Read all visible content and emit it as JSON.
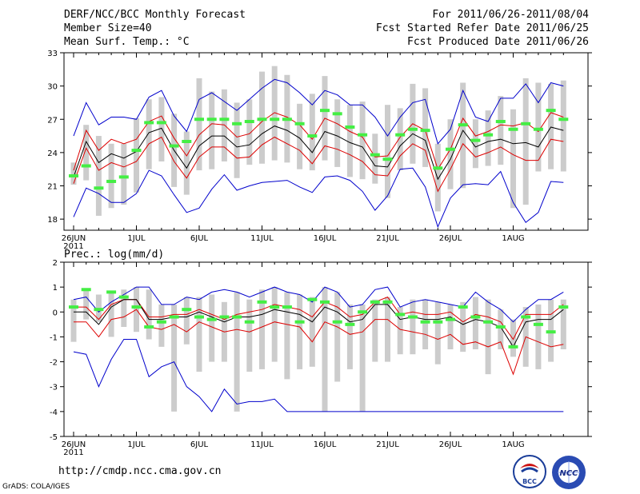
{
  "header": {
    "title": "DERF/NCC/BCC Monthly Forecast",
    "member_size": "Member Size=40",
    "variable": "Mean Surf. Temp.: °C",
    "forecast_period": "For 2011/06/26-2011/08/04",
    "refer_date": "Fcst Started Refer Date 2011/06/25",
    "produced_date": "Fcst Produced Date 2011/06/26"
  },
  "footer": {
    "url": "http://cmdp.ncc.cma.gov.cn",
    "credit": "GrADS: COLA/IGES",
    "logo_bcc": "BCC",
    "logo_ncc": "NCC"
  },
  "chart_data": [
    {
      "type": "ensemble-timeseries",
      "title": "Mean Surf. Temp.: °C",
      "ylim": [
        17,
        33
      ],
      "yticks": [
        18,
        21,
        24,
        27,
        30,
        33
      ],
      "xticks": [
        {
          "day": 0,
          "label": "26JUN",
          "sublabel": "2011"
        },
        {
          "day": 5,
          "label": "1JUL"
        },
        {
          "day": 10,
          "label": "6JUL"
        },
        {
          "day": 15,
          "label": "11JUL"
        },
        {
          "day": 20,
          "label": "16JUL"
        },
        {
          "day": 25,
          "label": "21JUL"
        },
        {
          "day": 30,
          "label": "26JUL"
        },
        {
          "day": 35,
          "label": "1AUG"
        }
      ],
      "days": 40,
      "series": [
        {
          "name": "max",
          "color": "#0000cc",
          "values": [
            25.5,
            28.5,
            26.5,
            27.2,
            27.2,
            27,
            29,
            29.6,
            27.3,
            25.9,
            28.8,
            29.4,
            28.6,
            27.8,
            28.8,
            29.8,
            30.6,
            30.3,
            29.4,
            28.3,
            29.6,
            29.2,
            28.3,
            28.3,
            27.2,
            25.5,
            27.2,
            28.5,
            28.8,
            24.8,
            26.1,
            29.6,
            27.2,
            26.8,
            28.9,
            28.9,
            30.2,
            28.5,
            30.3,
            30
          ]
        },
        {
          "name": "upper",
          "color": "#dd0000",
          "values": [
            22.4,
            26,
            24.2,
            25.2,
            24.8,
            25.2,
            26.8,
            27.3,
            25.3,
            23.7,
            25.6,
            26.6,
            26.5,
            25.4,
            25.7,
            26.8,
            27.6,
            27.2,
            26.5,
            25.2,
            27.1,
            26.6,
            25.9,
            25.4,
            23.6,
            23.7,
            25.4,
            26.6,
            26,
            22.5,
            24.3,
            27.1,
            25.5,
            25.9,
            26.5,
            26.4,
            26.7,
            25.9,
            27.6,
            27.2
          ]
        },
        {
          "name": "mean",
          "color": "#000000",
          "values": [
            21.8,
            25,
            23.1,
            23.9,
            23.5,
            24.1,
            25.8,
            26.2,
            24.2,
            22.6,
            24.6,
            25.5,
            25.5,
            24.5,
            24.7,
            25.7,
            26.4,
            26,
            25.3,
            24,
            25.9,
            25.5,
            24.9,
            24.5,
            22.8,
            22.7,
            24.6,
            25.7,
            25.1,
            21.6,
            23.4,
            26,
            24.5,
            25,
            25.2,
            24.8,
            24.9,
            24.5,
            26.3,
            26
          ]
        },
        {
          "name": "lower",
          "color": "#dd0000",
          "values": [
            21.2,
            24.4,
            22.4,
            23.1,
            22.7,
            23.2,
            24.8,
            25.4,
            23.2,
            21.7,
            23.6,
            24.5,
            24.5,
            23.5,
            23.6,
            24.7,
            25.4,
            24.8,
            24.2,
            23,
            24.6,
            24.3,
            23.8,
            23.2,
            22,
            21.9,
            23.7,
            24.8,
            24.2,
            20.5,
            22.5,
            24.8,
            23.6,
            24,
            24.5,
            23.8,
            23.3,
            23.3,
            25.2,
            25
          ]
        },
        {
          "name": "min",
          "color": "#0000cc",
          "values": [
            18.2,
            20.8,
            20.3,
            19.5,
            19.5,
            20.3,
            22.4,
            21.9,
            20.2,
            18.6,
            19,
            20.7,
            22,
            20.6,
            21,
            21.3,
            21.4,
            21.5,
            20.9,
            20.4,
            21.8,
            21.9,
            21.5,
            20.5,
            18.8,
            20.1,
            22.5,
            22.6,
            20.9,
            17.3,
            19.9,
            21.1,
            21.2,
            21.1,
            22.3,
            19.5,
            17.7,
            18.6,
            21.4,
            21.3
          ]
        },
        {
          "name": "observed",
          "color": "#44ee44",
          "values": [
            21.9,
            22.8,
            20.8,
            21.4,
            21.8,
            24.2,
            26.7,
            26.7,
            24.6,
            25,
            27,
            27,
            27,
            26.6,
            26.8,
            27,
            27,
            27,
            26.6,
            25.5,
            27.8,
            27.5,
            26.3,
            25.6,
            23.8,
            23.4,
            25.6,
            26.1,
            26,
            22.6,
            24.3,
            26.5,
            25.1,
            25.6,
            26.8,
            26.1,
            26.6,
            26.1,
            27.8,
            27
          ]
        }
      ],
      "bars_low": [
        21.1,
        21.5,
        18.3,
        19,
        19.3,
        20.4,
        22.5,
        23.2,
        20.9,
        20.2,
        22.4,
        22.5,
        23.2,
        21.7,
        22.9,
        23,
        23.3,
        23.1,
        22.5,
        22.4,
        23.3,
        22.7,
        21.8,
        21.6,
        21.2,
        19.9,
        22.4,
        23,
        22.7,
        18.7,
        20.7,
        20.8,
        22.6,
        22.8,
        22.9,
        19,
        19.3,
        22.3,
        22.5,
        22.3
      ],
      "bars_high": [
        23.1,
        26.5,
        25.5,
        24.8,
        24.8,
        27.1,
        28.8,
        29,
        27.5,
        25.9,
        30.7,
        29.5,
        29.7,
        28.5,
        28.8,
        31.3,
        31.8,
        31,
        28.4,
        29.3,
        30.9,
        28.8,
        28.3,
        28.6,
        25.7,
        28.3,
        28,
        30.2,
        29.8,
        24.8,
        27,
        30.3,
        27,
        27.8,
        29.1,
        27.9,
        30.7,
        30.3,
        30.2,
        30.5
      ]
    },
    {
      "type": "ensemble-timeseries",
      "title": "Prec.: log(mm/d)",
      "ylim": [
        -5,
        2
      ],
      "yticks": [
        -5,
        -4,
        -3,
        -2,
        -1,
        0,
        1,
        2
      ],
      "xticks": [
        {
          "day": 0,
          "label": "26JUN",
          "sublabel": "2011"
        },
        {
          "day": 5,
          "label": "1JUL"
        },
        {
          "day": 10,
          "label": "6JUL"
        },
        {
          "day": 15,
          "label": "11JUL"
        },
        {
          "day": 20,
          "label": "16JUL"
        },
        {
          "day": 25,
          "label": "21JUL"
        },
        {
          "day": 30,
          "label": "26JUL"
        },
        {
          "day": 35,
          "label": "1AUG"
        }
      ],
      "days": 40,
      "series": [
        {
          "name": "max",
          "color": "#0000cc",
          "values": [
            0.5,
            0.6,
            0,
            0.4,
            0.7,
            1.0,
            1.0,
            0.3,
            0.3,
            0.6,
            0.5,
            0.8,
            0.9,
            0.8,
            0.6,
            0.8,
            1.0,
            0.8,
            0.7,
            0.4,
            1.0,
            0.8,
            0.2,
            0.3,
            0.9,
            1.0,
            0.2,
            0.4,
            0.5,
            0.4,
            0.3,
            0.2,
            0.8,
            0.4,
            0.1,
            -0.4,
            0.1,
            0.5,
            0.5,
            0.8
          ]
        },
        {
          "name": "upper",
          "color": "#dd0000",
          "values": [
            0.2,
            0.2,
            -0.3,
            0.3,
            0.5,
            0.5,
            -0.2,
            -0.2,
            -0.1,
            -0.1,
            0.1,
            -0.1,
            -0.3,
            -0.1,
            0,
            0.1,
            0.3,
            0.2,
            0.1,
            -0.2,
            0.4,
            0.2,
            -0.2,
            -0.1,
            0.4,
            0.6,
            -0.1,
            0,
            -0.1,
            -0.1,
            0,
            -0.4,
            -0.1,
            -0.2,
            -0.4,
            -1.1,
            -0.1,
            -0.1,
            -0.1,
            0.3
          ]
        },
        {
          "name": "mean",
          "color": "#000000",
          "values": [
            0,
            0,
            -0.5,
            0.2,
            0.5,
            0.5,
            -0.3,
            -0.3,
            -0.2,
            -0.2,
            0,
            -0.2,
            -0.4,
            -0.2,
            -0.2,
            -0.1,
            0.1,
            0,
            -0.1,
            -0.4,
            0.2,
            0,
            -0.4,
            -0.3,
            0.3,
            0.3,
            -0.3,
            -0.2,
            -0.3,
            -0.3,
            -0.2,
            -0.5,
            -0.3,
            -0.4,
            -0.6,
            -1.4,
            -0.4,
            -0.3,
            -0.3,
            0.1
          ]
        },
        {
          "name": "lower",
          "color": "#dd0000",
          "values": [
            -0.4,
            -0.4,
            -1.0,
            -0.3,
            -0.2,
            0.1,
            -0.6,
            -0.7,
            -0.5,
            -0.8,
            -0.4,
            -0.6,
            -0.8,
            -0.7,
            -0.8,
            -0.6,
            -0.4,
            -0.5,
            -0.6,
            -1.2,
            -0.4,
            -0.6,
            -0.9,
            -0.8,
            -0.3,
            -0.3,
            -0.7,
            -0.8,
            -0.9,
            -1.1,
            -0.9,
            -1.3,
            -1.2,
            -1.4,
            -1.2,
            -2.5,
            -1.0,
            -1.2,
            -1.4,
            -1.3
          ]
        },
        {
          "name": "min",
          "color": "#0000cc",
          "values": [
            -1.6,
            -1.7,
            -3.0,
            -1.9,
            -1.1,
            -1.1,
            -2.6,
            -2.2,
            -2.0,
            -3.0,
            -3.4,
            -4.0,
            -3.1,
            -3.7,
            -3.6,
            -3.6,
            -3.5,
            -4.0,
            -4.0,
            -4.0,
            -4.0,
            -4.0,
            -4.0,
            -4.0,
            -4.0,
            -4.0,
            -4.0,
            -4.0,
            -4.0,
            -4.0,
            -4.0,
            -4.0,
            -4.0,
            -4.0,
            -4.0,
            -4.0,
            -4.0,
            -4.0,
            -4.0,
            -4.0
          ]
        },
        {
          "name": "observed",
          "color": "#44ee44",
          "values": [
            0.2,
            0.9,
            0.1,
            0.8,
            0.6,
            0.2,
            -0.6,
            -0.4,
            -0.2,
            0.1,
            -0.2,
            -0.3,
            -0.2,
            -0.2,
            -0.4,
            0.4,
            0.2,
            0.2,
            -0.4,
            0.5,
            0.4,
            -0.4,
            -0.5,
            0,
            0.4,
            0.4,
            -0.1,
            -0.2,
            -0.4,
            -0.4,
            -0.3,
            0.2,
            -0.2,
            -0.4,
            -0.6,
            -1.4,
            -0.2,
            -0.5,
            -0.8,
            0.2
          ]
        }
      ],
      "bars_low": [
        -1.2,
        -0.3,
        -0.4,
        -1.0,
        -0.6,
        -0.8,
        -1.1,
        -1.4,
        -4.0,
        -1.3,
        -2.4,
        -2.0,
        -2.0,
        -4.0,
        -2.4,
        -2.3,
        -2.0,
        -2.7,
        -2.3,
        -2.2,
        -4.0,
        -2.8,
        -2.3,
        -4.0,
        -2.0,
        -2.0,
        -1.7,
        -1.7,
        -1.5,
        -2.1,
        -1.5,
        -1.6,
        -1.5,
        -2.5,
        -1.5,
        -1.8,
        -2.2,
        -2.3,
        -2.0,
        -1.5
      ],
      "bars_high": [
        0.5,
        0.9,
        0.7,
        0.8,
        0.9,
        1.0,
        0.9,
        0.3,
        0.3,
        0.6,
        0.6,
        0.7,
        0.4,
        0.8,
        0.5,
        0.9,
        1.0,
        0.8,
        0.7,
        0.6,
        1.0,
        0.8,
        0.3,
        0.3,
        0.5,
        0.6,
        0.2,
        0.5,
        0.5,
        0.4,
        0.3,
        0.4,
        0.6,
        0.5,
        0.1,
        -0.3,
        0.2,
        0.3,
        0.5,
        0.5
      ]
    }
  ]
}
